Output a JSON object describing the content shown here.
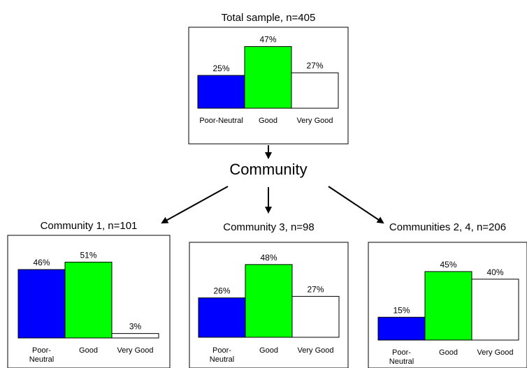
{
  "root_label": "Community",
  "colors": {
    "poor_neutral": "#0000ff",
    "good": "#00ff00",
    "very_good": "#ffffff",
    "outline": "#000000"
  },
  "chart_data": [
    {
      "type": "bar",
      "title": "Total sample, n=405",
      "categories": [
        "Poor-Neutral",
        "Good",
        "Very Good"
      ],
      "values": [
        25,
        47,
        27
      ],
      "value_labels": [
        "25%",
        "47%",
        "27%"
      ],
      "ylim": [
        0,
        50
      ],
      "xlabel": "",
      "ylabel": "",
      "grid": false
    },
    {
      "type": "bar",
      "title": "Community 1, n=101",
      "categories": [
        "Poor-Neutral",
        "Good",
        "Very Good"
      ],
      "values": [
        46,
        51,
        3
      ],
      "value_labels": [
        "46%",
        "51%",
        "3%"
      ],
      "ylim": [
        0,
        55
      ],
      "xlabel": "",
      "ylabel": "",
      "grid": false
    },
    {
      "type": "bar",
      "title": "Community 3, n=98",
      "categories": [
        "Poor-Neutral",
        "Good",
        "Very Good"
      ],
      "values": [
        26,
        48,
        27
      ],
      "value_labels": [
        "26%",
        "48%",
        "27%"
      ],
      "ylim": [
        0,
        55
      ],
      "xlabel": "",
      "ylabel": "",
      "grid": false
    },
    {
      "type": "bar",
      "title": "Communities 2, 4, n=206",
      "categories": [
        "Poor-Neutral",
        "Good",
        "Very Good"
      ],
      "values": [
        15,
        45,
        40
      ],
      "value_labels": [
        "15%",
        "45%",
        "40%"
      ],
      "ylim": [
        0,
        50
      ],
      "xlabel": "",
      "ylabel": "",
      "grid": false
    }
  ]
}
